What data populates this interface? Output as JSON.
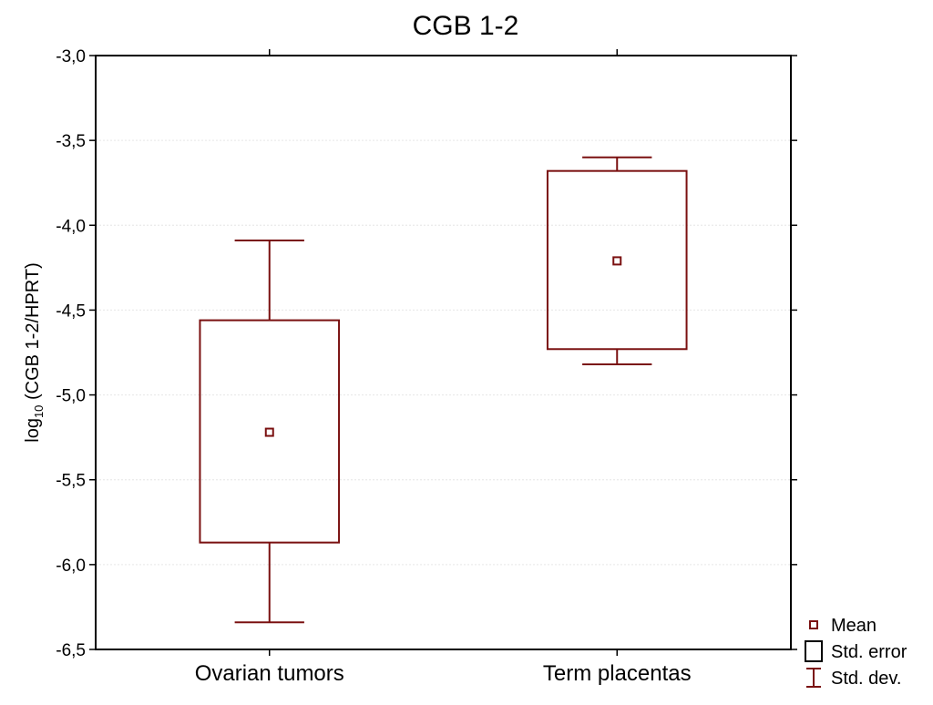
{
  "chart_data": {
    "type": "box",
    "title": "CGB 1-2",
    "ylabel": {
      "prefix": "log",
      "subscript": "10",
      "suffix": " (CGB 1-2/HPRT)"
    },
    "xlabel": "",
    "ylim": [
      -6.5,
      -3.0
    ],
    "yticks": [
      -3.0,
      -3.5,
      -4.0,
      -4.5,
      -5.0,
      -5.5,
      -6.0,
      -6.5
    ],
    "ytick_labels": [
      "-3,0",
      "-3,5",
      "-4,0",
      "-4,5",
      "-5,0",
      "-5,5",
      "-6,0",
      "-6,5"
    ],
    "grid": true,
    "legend_position": "bottom-right, outside plot",
    "color": "#7a1010",
    "categories": [
      "Ovarian tumors",
      "Term placentas"
    ],
    "groups": [
      {
        "category": "Ovarian tumors",
        "mean": -5.22,
        "std_error": [
          -5.87,
          -4.56
        ],
        "std_dev": [
          -6.34,
          -4.09
        ]
      },
      {
        "category": "Term placentas",
        "mean": -4.21,
        "std_error": [
          -4.73,
          -3.68
        ],
        "std_dev": [
          -4.82,
          -3.6
        ]
      }
    ],
    "legend": [
      {
        "symbol": "mean",
        "label": "Mean"
      },
      {
        "symbol": "box",
        "label": "Std. error"
      },
      {
        "symbol": "whisker",
        "label": "Std. dev."
      }
    ]
  }
}
